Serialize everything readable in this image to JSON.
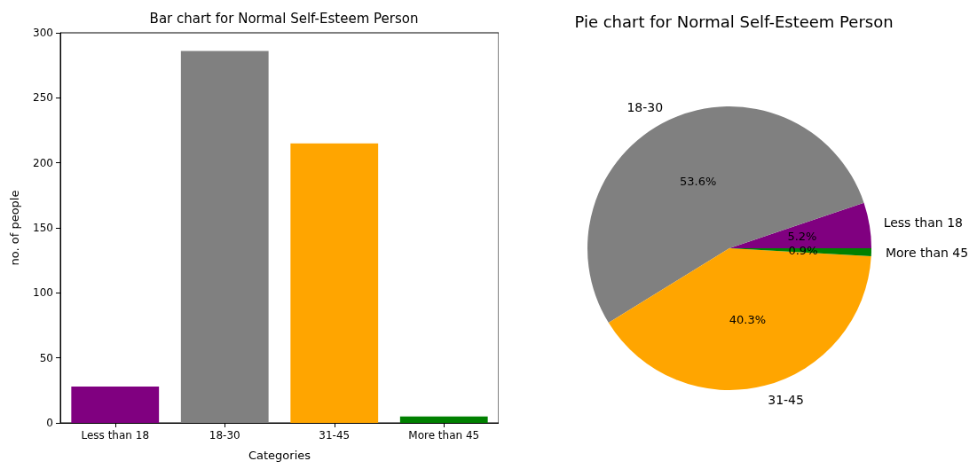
{
  "chart_data": [
    {
      "type": "bar",
      "title": "Bar chart for Normal Self-Esteem Person",
      "xlabel": "Categories",
      "ylabel": "no. of people",
      "categories": [
        "Less than 18",
        "18-30",
        "31-45",
        "More than 45"
      ],
      "values": [
        28,
        286,
        215,
        5
      ],
      "colors": [
        "#800080",
        "#808080",
        "#ffa500",
        "#008000"
      ],
      "ylim": [
        0,
        300
      ],
      "yticks": [
        0,
        50,
        100,
        150,
        200,
        250,
        300
      ],
      "grid": false,
      "legend": false
    },
    {
      "type": "pie",
      "title": "Pie chart for Normal Self-Esteem Person",
      "categories": [
        "Less than 18",
        "18-30",
        "31-45",
        "More than 45"
      ],
      "values": [
        5.2,
        53.6,
        40.3,
        0.9
      ],
      "value_labels": [
        "5.2%",
        "53.6%",
        "40.3%",
        "0.9%"
      ],
      "colors": [
        "#800080",
        "#808080",
        "#ffa500",
        "#008000"
      ],
      "legend": false
    }
  ]
}
